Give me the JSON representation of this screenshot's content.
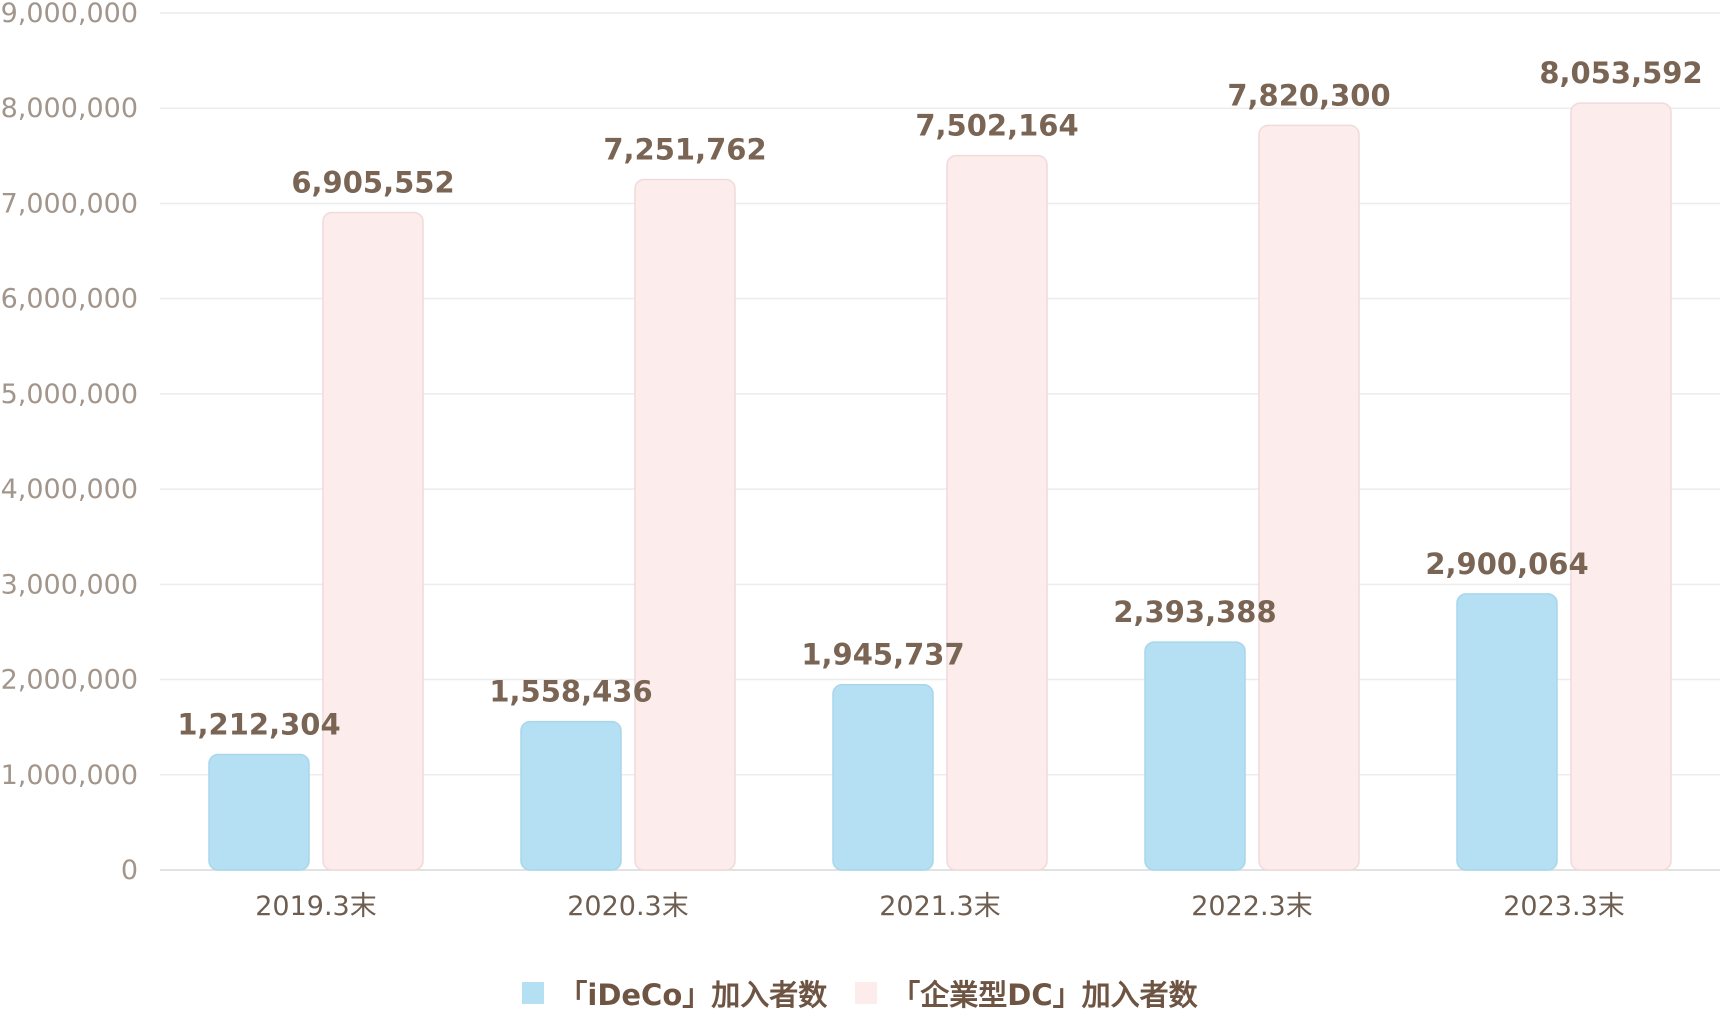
{
  "chart_data": {
    "type": "bar",
    "categories": [
      "2019.3末",
      "2020.3末",
      "2021.3末",
      "2022.3末",
      "2023.3末"
    ],
    "series": [
      {
        "name": "「iDeCo」加入者数",
        "values": [
          1212304,
          1558436,
          1945737,
          2393388,
          2900064
        ],
        "color": "#b5dff2"
      },
      {
        "name": "「企業型DC」加入者数",
        "values": [
          6905552,
          7251762,
          7502164,
          7820300,
          8053592
        ],
        "color": "#fcecec"
      }
    ],
    "title": "",
    "xlabel": "",
    "ylabel": "",
    "ylim": [
      0,
      9000000
    ],
    "yticks": [
      "0",
      "1,000,000",
      "2,000,000",
      "3,000,000",
      "4,000,000",
      "5,000,000",
      "6,000,000",
      "7,000,000",
      "8,000,000",
      "9,000,000"
    ],
    "data_labels": [
      [
        "1,212,304",
        "1,558,436",
        "1,945,737",
        "2,393,388",
        "2,900,064"
      ],
      [
        "6,905,552",
        "7,251,762",
        "7,502,164",
        "7,820,300",
        "8,053,592"
      ]
    ],
    "grid": true,
    "legend_position": "bottom"
  }
}
